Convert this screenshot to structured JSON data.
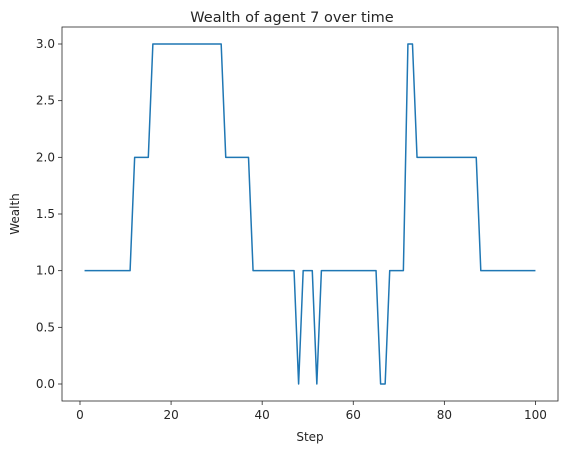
{
  "chart_data": {
    "type": "line",
    "title": "Wealth of agent 7 over time",
    "xlabel": "Step",
    "ylabel": "Wealth",
    "xlim": [
      -3.95,
      104.95
    ],
    "ylim": [
      -0.15,
      3.15
    ],
    "xticks": [
      0,
      20,
      40,
      60,
      80,
      100
    ],
    "xtick_labels": [
      "0",
      "20",
      "40",
      "60",
      "80",
      "100"
    ],
    "yticks": [
      0.0,
      0.5,
      1.0,
      1.5,
      2.0,
      2.5,
      3.0
    ],
    "ytick_labels": [
      "0.0",
      "0.5",
      "1.0",
      "1.5",
      "2.0",
      "2.5",
      "3.0"
    ],
    "grid": false,
    "line_color": "#1f77b4",
    "series": [
      {
        "x": [
          1,
          2,
          3,
          4,
          5,
          6,
          7,
          8,
          9,
          10,
          11,
          12,
          13,
          14,
          15,
          16,
          17,
          18,
          19,
          20,
          21,
          22,
          23,
          24,
          25,
          26,
          27,
          28,
          29,
          30,
          31,
          32,
          33,
          34,
          35,
          36,
          37,
          38,
          39,
          40,
          41,
          42,
          43,
          44,
          45,
          46,
          47,
          48,
          49,
          50,
          51,
          52,
          53,
          54,
          55,
          56,
          57,
          58,
          59,
          60,
          61,
          62,
          63,
          64,
          65,
          66,
          67,
          68,
          69,
          70,
          71,
          72,
          73,
          74,
          75,
          76,
          77,
          78,
          79,
          80,
          81,
          82,
          83,
          84,
          85,
          86,
          87,
          88,
          89,
          90,
          91,
          92,
          93,
          94,
          95,
          96,
          97,
          98,
          99,
          100
        ],
        "values": [
          1,
          1,
          1,
          1,
          1,
          1,
          1,
          1,
          1,
          1,
          1,
          2,
          2,
          2,
          2,
          3,
          3,
          3,
          3,
          3,
          3,
          3,
          3,
          3,
          3,
          3,
          3,
          3,
          3,
          3,
          3,
          2,
          2,
          2,
          2,
          2,
          2,
          1,
          1,
          1,
          1,
          1,
          1,
          1,
          1,
          1,
          1,
          0,
          1,
          1,
          1,
          0,
          1,
          1,
          1,
          1,
          1,
          1,
          1,
          1,
          1,
          1,
          1,
          1,
          1,
          0,
          0,
          1,
          1,
          1,
          1,
          3,
          3,
          2,
          2,
          2,
          2,
          2,
          2,
          2,
          2,
          2,
          2,
          2,
          2,
          2,
          2,
          1,
          1,
          1,
          1,
          1,
          1,
          1,
          1,
          1,
          1,
          1,
          1,
          1
        ]
      }
    ]
  }
}
